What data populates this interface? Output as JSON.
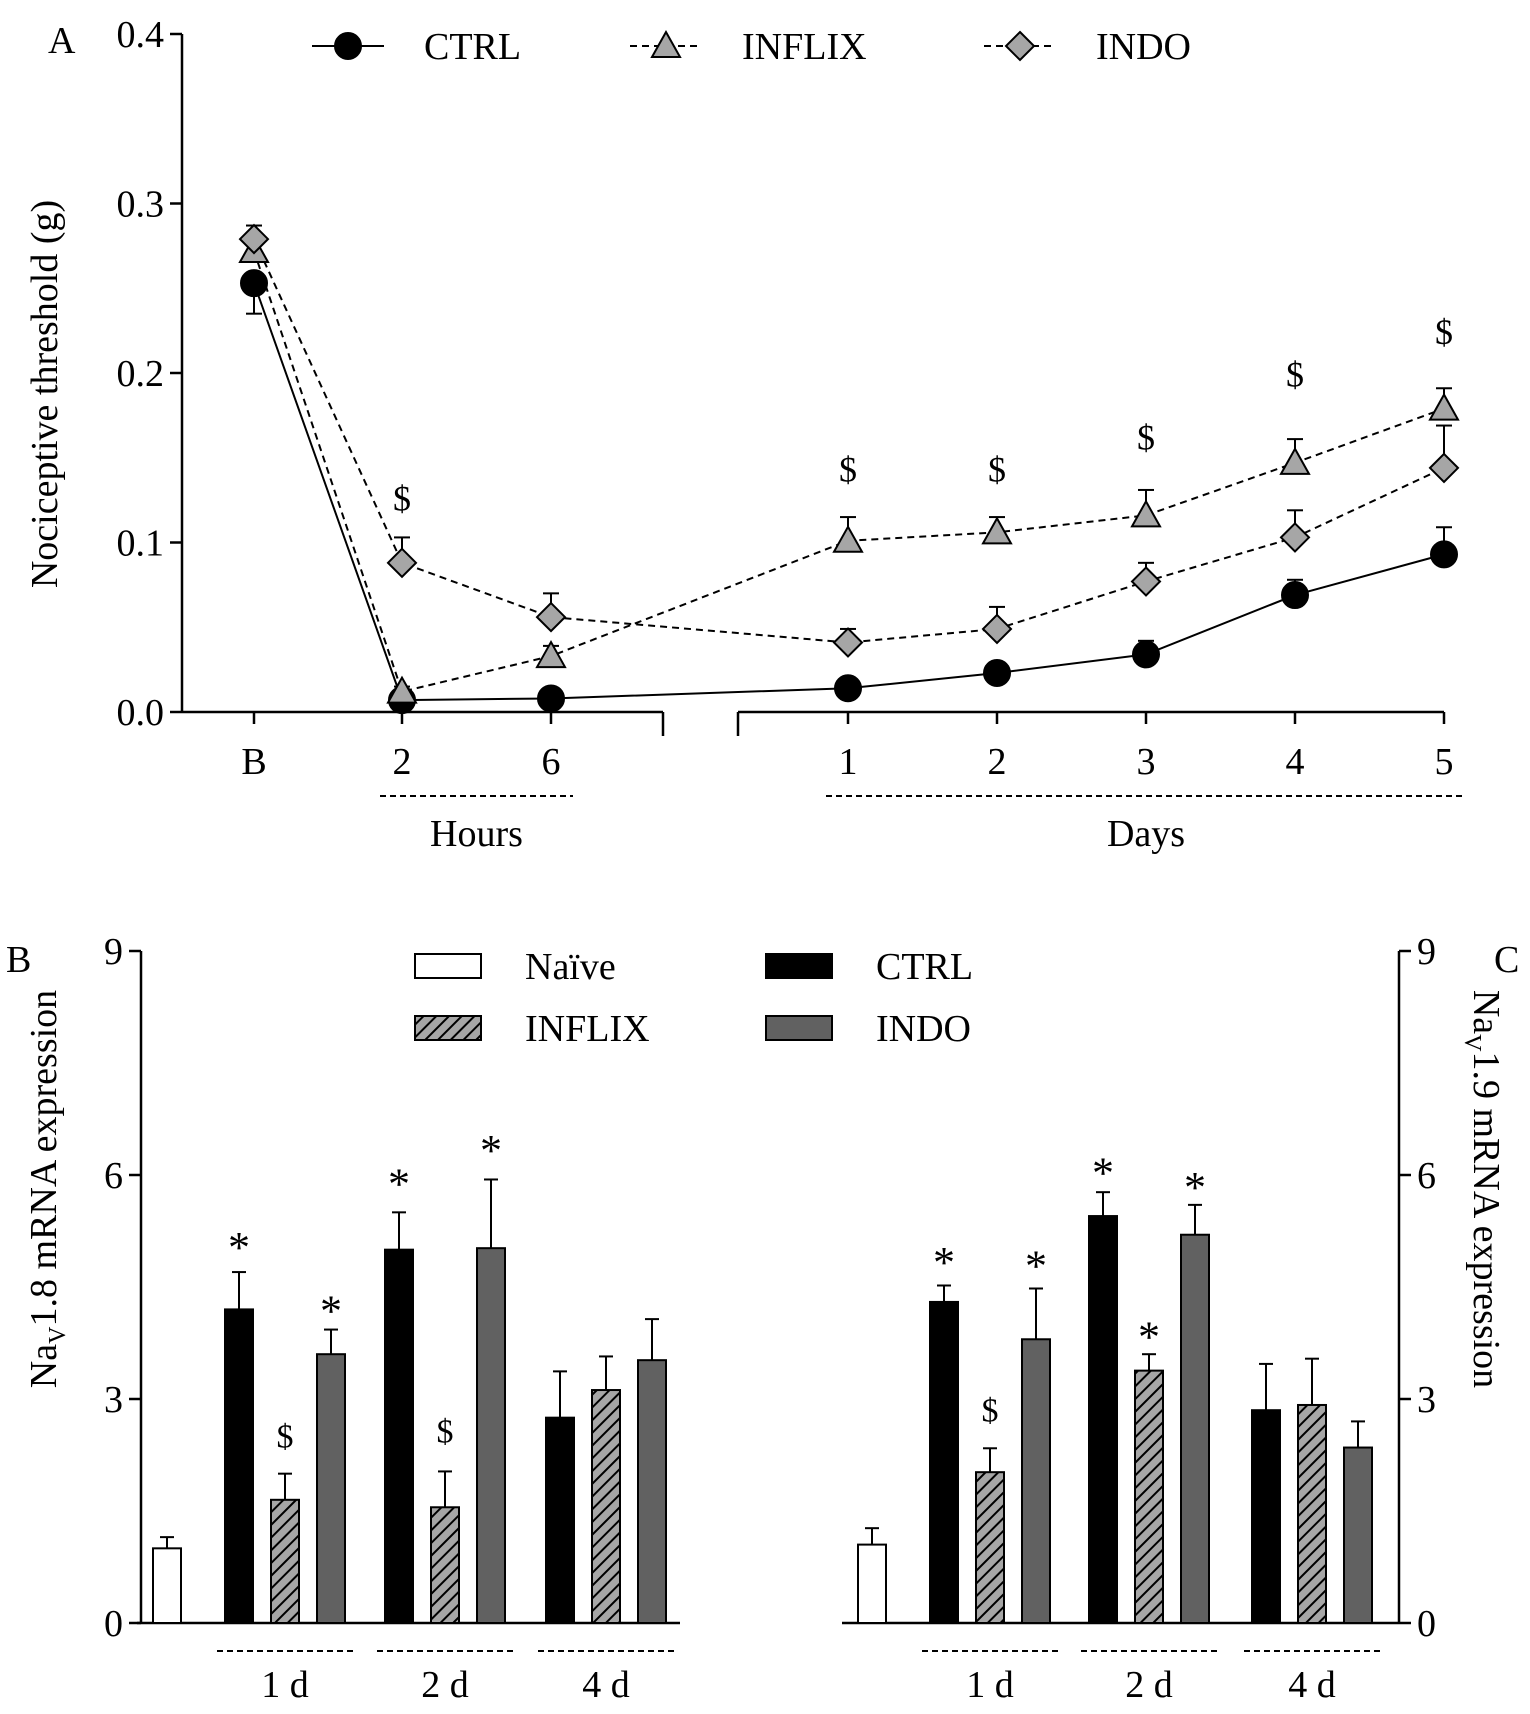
{
  "chart_data": [
    {
      "panel": "A",
      "type": "line",
      "ylabel": "Nociceptive threshold (g)",
      "ylim": [
        0,
        0.4
      ],
      "yticks": [
        0.0,
        0.1,
        0.2,
        0.3,
        0.4
      ],
      "ytick_labels": [
        "0.0",
        "0.1",
        "0.2",
        "0.3",
        "0.4"
      ],
      "categories": [
        "B",
        "2",
        "6",
        "1",
        "2",
        "3",
        "4",
        "5"
      ],
      "group_labels": [
        {
          "label": "Hours",
          "from": 1,
          "to": 2
        },
        {
          "label": "Days",
          "from": 3,
          "to": 7
        }
      ],
      "axis_break_after_index": 2,
      "series": [
        {
          "name": "CTRL",
          "marker": "circle",
          "dash": false,
          "fill": "#000000",
          "values": [
            0.253,
            0.007,
            0.008,
            0.014,
            0.023,
            0.034,
            0.069,
            0.093
          ],
          "errors": [
            0.018,
            0.003,
            0.003,
            0.003,
            0.004,
            0.008,
            0.009,
            0.016
          ]
        },
        {
          "name": "INFLIX",
          "marker": "triangle",
          "dash": true,
          "fill": "#a6a6a6",
          "values": [
            0.272,
            0.012,
            0.033,
            0.101,
            0.106,
            0.116,
            0.147,
            0.179
          ],
          "errors": [
            0.01,
            0.003,
            0.006,
            0.014,
            0.009,
            0.015,
            0.014,
            0.012
          ]
        },
        {
          "name": "INDO",
          "marker": "diamond",
          "dash": true,
          "fill": "#a6a6a6",
          "values": [
            0.279,
            0.088,
            0.056,
            0.041,
            0.049,
            0.077,
            0.103,
            0.144
          ],
          "errors": [
            0.008,
            0.015,
            0.014,
            0.008,
            0.013,
            0.011,
            0.016,
            0.025
          ]
        }
      ],
      "annotations": [
        {
          "text": "$",
          "index": 1,
          "value": 0.119
        },
        {
          "text": "$",
          "index": 3,
          "value": 0.136
        },
        {
          "text": "$",
          "index": 4,
          "value": 0.136
        },
        {
          "text": "$",
          "index": 5,
          "value": 0.155
        },
        {
          "text": "$",
          "index": 6,
          "value": 0.192
        },
        {
          "text": "$",
          "index": 7,
          "value": 0.217
        }
      ]
    },
    {
      "panel": "B",
      "type": "bar",
      "ylabel_main": "Na",
      "ylabel_sub": "V",
      "ylabel_rest": "1.8 mRNA expression",
      "ylim": [
        0,
        9
      ],
      "yticks": [
        0,
        3,
        6,
        9
      ],
      "ytick_labels": [
        "0",
        "3",
        "6",
        "9"
      ],
      "naive": {
        "value": 1.0,
        "error": 0.15
      },
      "groups": [
        "1 d",
        "2 d",
        "4 d"
      ],
      "series": [
        {
          "name": "CTRL",
          "values": [
            4.2,
            5.0,
            2.75
          ],
          "errors": [
            0.5,
            0.5,
            0.62
          ]
        },
        {
          "name": "INFLIX",
          "values": [
            1.65,
            1.55,
            3.12
          ],
          "errors": [
            0.35,
            0.48,
            0.45
          ]
        },
        {
          "name": "INDO",
          "values": [
            3.6,
            5.02,
            3.52
          ],
          "errors": [
            0.33,
            0.92,
            0.55
          ]
        }
      ],
      "annotations": [
        {
          "text": "*",
          "group": 0,
          "series": 0,
          "value": 5.05
        },
        {
          "text": "$",
          "group": 0,
          "series": 1,
          "value": 2.35
        },
        {
          "text": "*",
          "group": 0,
          "series": 2,
          "value": 4.2
        },
        {
          "text": "*",
          "group": 1,
          "series": 0,
          "value": 5.9
        },
        {
          "text": "$",
          "group": 1,
          "series": 1,
          "value": 2.42
        },
        {
          "text": "*",
          "group": 1,
          "series": 2,
          "value": 6.35
        }
      ]
    },
    {
      "panel": "C",
      "type": "bar",
      "ylabel_main": "Na",
      "ylabel_sub": "V",
      "ylabel_rest": "1.9 mRNA expression",
      "ylim": [
        0,
        9
      ],
      "yticks": [
        0,
        3,
        6,
        9
      ],
      "ytick_labels": [
        "0",
        "3",
        "6",
        "9"
      ],
      "naive": {
        "value": 1.05,
        "error": 0.22
      },
      "groups": [
        "1 d",
        "2 d",
        "4 d"
      ],
      "series": [
        {
          "name": "CTRL",
          "values": [
            4.3,
            5.45,
            2.85
          ],
          "errors": [
            0.22,
            0.32,
            0.62
          ]
        },
        {
          "name": "INFLIX",
          "values": [
            2.02,
            3.38,
            2.92
          ],
          "errors": [
            0.32,
            0.22,
            0.62
          ]
        },
        {
          "name": "INDO",
          "values": [
            3.8,
            5.2,
            2.35
          ],
          "errors": [
            0.68,
            0.4,
            0.35
          ]
        }
      ],
      "annotations": [
        {
          "text": "*",
          "group": 0,
          "series": 0,
          "value": 4.85
        },
        {
          "text": "$",
          "group": 0,
          "series": 1,
          "value": 2.7
        },
        {
          "text": "*",
          "group": 0,
          "series": 2,
          "value": 4.8
        },
        {
          "text": "*",
          "group": 1,
          "series": 0,
          "value": 6.05
        },
        {
          "text": "*",
          "group": 1,
          "series": 1,
          "value": 3.85
        },
        {
          "text": "*",
          "group": 1,
          "series": 2,
          "value": 5.85
        }
      ]
    }
  ],
  "legend_a": [
    {
      "name": "CTRL",
      "marker": "circle",
      "dash": false,
      "fill": "#000000"
    },
    {
      "name": "INFLIX",
      "marker": "triangle",
      "dash": true,
      "fill": "#a6a6a6"
    },
    {
      "name": "INDO",
      "marker": "diamond",
      "dash": true,
      "fill": "#a6a6a6"
    }
  ],
  "legend_b": [
    {
      "name": "Naïve",
      "fill": "#ffffff",
      "pattern": false
    },
    {
      "name": "CTRL",
      "fill": "#000000",
      "pattern": false
    },
    {
      "name": "INFLIX",
      "fill": "#a6a6a6",
      "pattern": true
    },
    {
      "name": "INDO",
      "fill": "#616161",
      "pattern": false
    }
  ],
  "colors": {
    "naive": "#ffffff",
    "ctrl": "#000000",
    "inflix": "#a6a6a6",
    "indo": "#616161",
    "marker_gray": "#a6a6a6"
  }
}
